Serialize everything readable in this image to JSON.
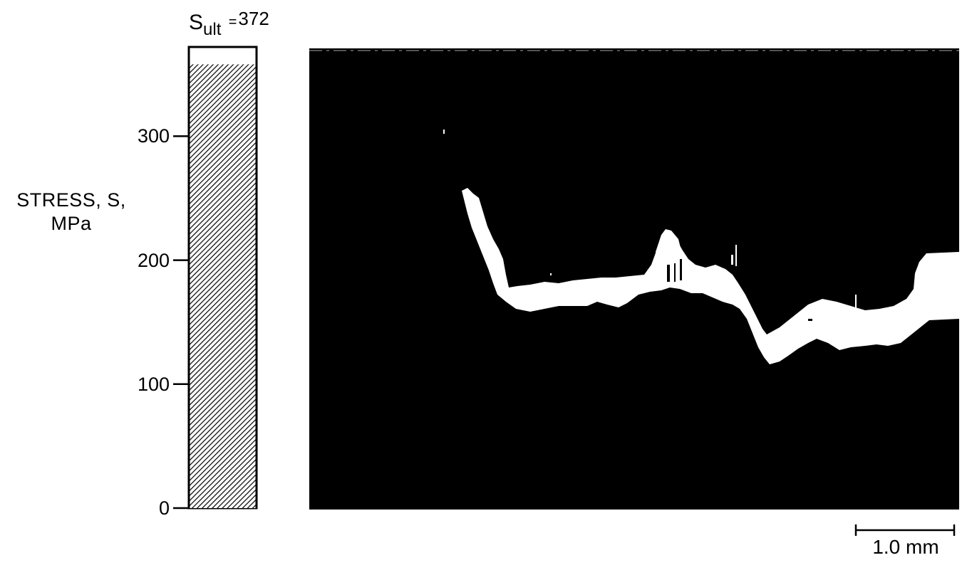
{
  "figure": {
    "sult": {
      "symbol": "S",
      "subscript": "ult",
      "equals": "=",
      "value": "372"
    },
    "y_axis_label_lines": [
      "STRESS, S,",
      "MPa"
    ],
    "scale_bar_label": "1.0 mm"
  },
  "chart_data": {
    "type": "bar",
    "categories": [
      ""
    ],
    "values": [
      358
    ],
    "ylabel": "STRESS, S, MPa",
    "ylim": [
      0,
      372
    ],
    "yticks": [
      0,
      100,
      200,
      300
    ],
    "annotation": "Sult = 372",
    "grid": false
  },
  "colors": {
    "bar_hatch": "#000000",
    "photo_background": "#000000",
    "fracture_band": "#ffffff"
  }
}
